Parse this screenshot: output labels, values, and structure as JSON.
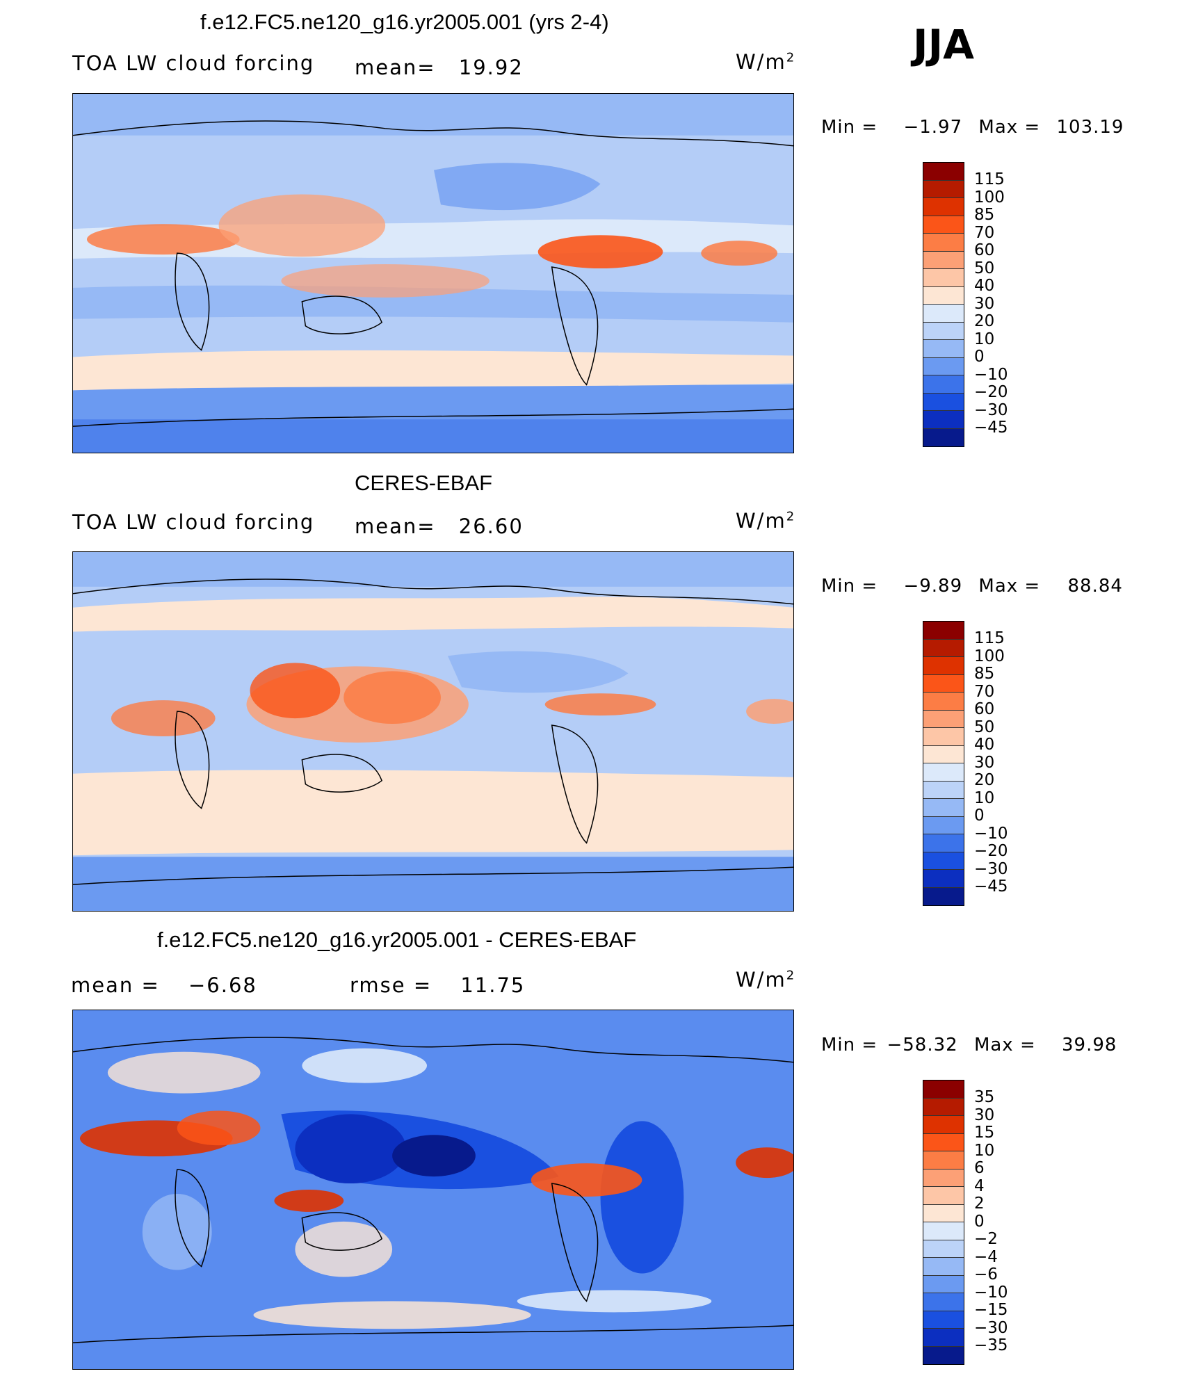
{
  "season": "JJA",
  "panels": [
    {
      "title": "f.e12.FC5.ne120_g16.yr2005.001 (yrs 2-4)",
      "variable": "TOA LW cloud forcing",
      "stat1_label": "mean=",
      "stat1_value": "19.92",
      "units": "W/m",
      "units_sup": "2",
      "min_label": "Min =",
      "min_value": "−1.97",
      "max_label": "Max =",
      "max_value": "103.19"
    },
    {
      "title": "CERES-EBAF",
      "variable": "TOA LW cloud forcing",
      "stat1_label": "mean=",
      "stat1_value": "26.60",
      "units": "W/m",
      "units_sup": "2",
      "min_label": "Min =",
      "min_value": "−9.89",
      "max_label": "Max =",
      "max_value": "88.84"
    },
    {
      "title": "f.e12.FC5.ne120_g16.yr2005.001 - CERES-EBAF",
      "stat1_label": "mean =",
      "stat1_value": "−6.68",
      "stat2_label": "rmse =",
      "stat2_value": "11.75",
      "units": "W/m",
      "units_sup": "2",
      "min_label": "Min =",
      "min_value": "−58.32",
      "max_label": "Max =",
      "max_value": "39.98"
    }
  ],
  "colorbar_field": {
    "levels": [
      "115",
      "100",
      "85",
      "70",
      "60",
      "50",
      "40",
      "30",
      "20",
      "10",
      "0",
      "−10",
      "−20",
      "−30",
      "−45"
    ],
    "colors": [
      "#8b0000",
      "#b51b00",
      "#de3200",
      "#fb5518",
      "#fc7d45",
      "#fca076",
      "#fdc6a7",
      "#fde6d4",
      "#dce9fa",
      "#bcd3f8",
      "#96b9f5",
      "#6b9af1",
      "#3c73ea",
      "#1a50e0",
      "#0c2fc0",
      "#071a8c"
    ]
  },
  "colorbar_diff": {
    "levels": [
      "35",
      "30",
      "15",
      "10",
      "6",
      "4",
      "2",
      "0",
      "−2",
      "−4",
      "−6",
      "−10",
      "−15",
      "−30",
      "−35"
    ],
    "colors": [
      "#8b0000",
      "#b51b00",
      "#de3200",
      "#fb5518",
      "#fc7d45",
      "#fca076",
      "#fdc6a7",
      "#fde6d4",
      "#dce9fa",
      "#bcd3f8",
      "#96b9f5",
      "#6b9af1",
      "#3c73ea",
      "#1a50e0",
      "#0c2fc0",
      "#071a8c"
    ]
  }
}
